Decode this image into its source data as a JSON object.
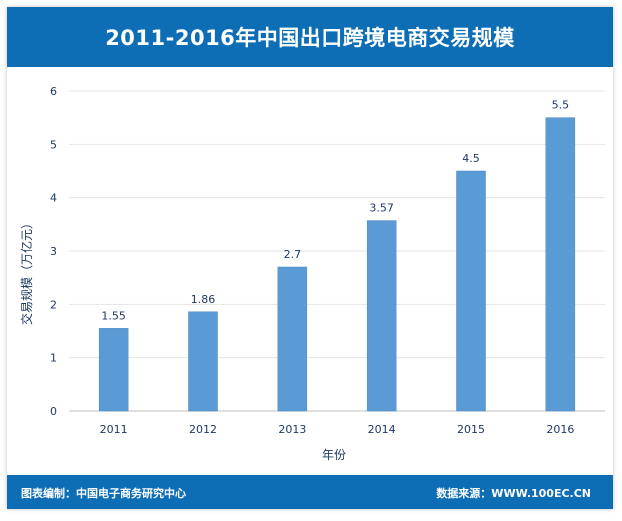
{
  "chart_data": {
    "type": "bar",
    "title": "2011-2016年中国出口跨境电商交易规模",
    "xlabel": "年份",
    "ylabel": "交易规模（万亿元）",
    "categories": [
      "2011",
      "2012",
      "2013",
      "2014",
      "2015",
      "2016"
    ],
    "values": [
      1.55,
      1.86,
      2.7,
      3.57,
      4.5,
      5.5
    ],
    "value_labels": [
      "1.55",
      "1.86",
      "2.7",
      "3.57",
      "4.5",
      "5.5"
    ],
    "yticks": [
      "0",
      "1",
      "2",
      "3",
      "4",
      "5",
      "6"
    ],
    "ylim": [
      0,
      6
    ],
    "grid": true,
    "bar_color": "#5b9bd5"
  },
  "footer": {
    "left": "图表编制：中国电子商务研究中心",
    "right": "数据来源：WWW.100EC.CN"
  },
  "colors": {
    "header_bg": "#0d6eb5",
    "bar": "#5b9bd5",
    "text": "#1f3864"
  }
}
